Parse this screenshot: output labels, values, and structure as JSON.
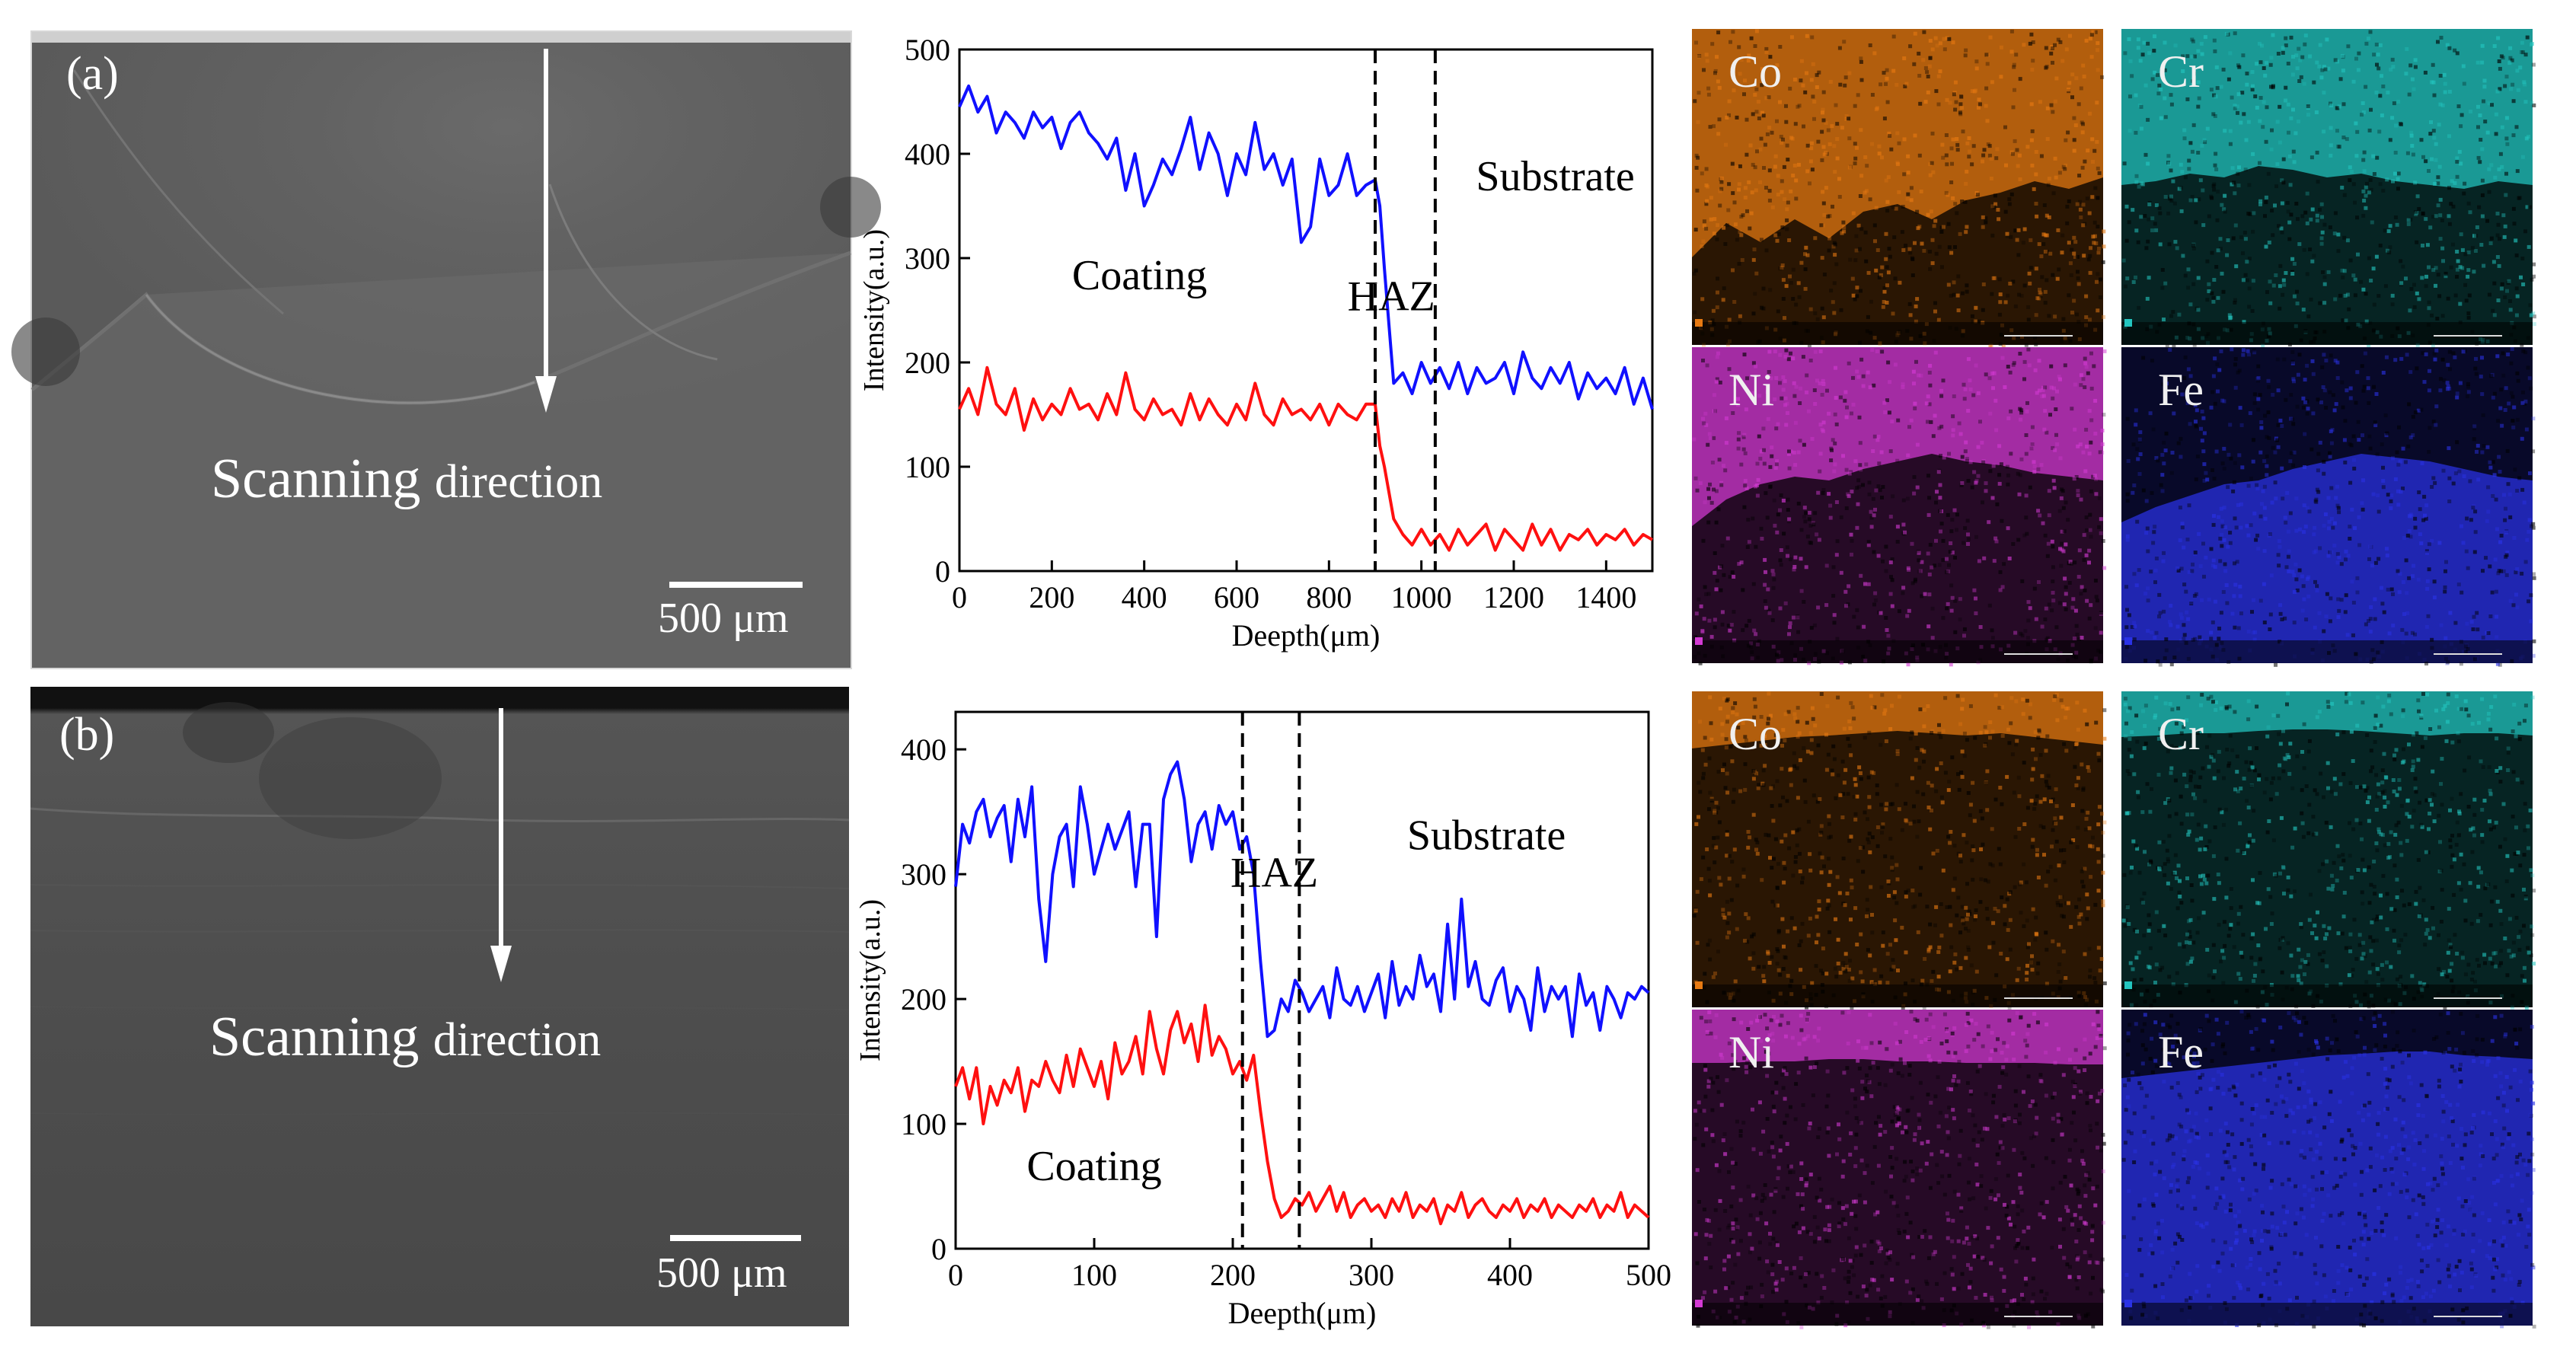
{
  "panels": [
    {
      "label": "(a)",
      "scan_text_main": "Scanning",
      "scan_text_small": "direction",
      "scalebar": "500 μm"
    },
    {
      "label": "(b)",
      "scan_text_main": "Scanning",
      "scan_text_small": "direction",
      "scalebar": "500 μm"
    }
  ],
  "eds_maps": [
    {
      "element": "Co",
      "color": "#e87a12"
    },
    {
      "element": "Cr",
      "color": "#23c6c0"
    },
    {
      "element": "Ni",
      "color": "#d43ad4"
    },
    {
      "element": "Fe",
      "color": "#2a32e6"
    }
  ],
  "chart_data": [
    {
      "type": "line",
      "xlabel": "Deepth(μm)",
      "ylabel": "Intensity(a.u.)",
      "xlim": [
        0,
        1500
      ],
      "ylim": [
        0,
        500
      ],
      "xticks": [
        0,
        200,
        400,
        600,
        800,
        1000,
        1200,
        1400
      ],
      "yticks": [
        0,
        100,
        200,
        300,
        400,
        500
      ],
      "boundaries": [
        900,
        1030
      ],
      "annotations": [
        {
          "text": "Coating",
          "x": 390,
          "y": 270
        },
        {
          "text": "HAZ",
          "x": 935,
          "y": 250
        },
        {
          "text": "Substrate",
          "x": 1290,
          "y": 365
        }
      ],
      "series": [
        {
          "name": "blue",
          "color": "#1010ff",
          "x": [
            0,
            20,
            40,
            60,
            80,
            100,
            120,
            140,
            160,
            180,
            200,
            220,
            240,
            260,
            280,
            300,
            320,
            340,
            360,
            380,
            400,
            420,
            440,
            460,
            480,
            500,
            520,
            540,
            560,
            580,
            600,
            620,
            640,
            660,
            680,
            700,
            720,
            740,
            760,
            780,
            800,
            820,
            840,
            860,
            880,
            900,
            910,
            920,
            940,
            960,
            980,
            1000,
            1020,
            1040,
            1060,
            1080,
            1100,
            1120,
            1140,
            1160,
            1180,
            1200,
            1220,
            1240,
            1260,
            1280,
            1300,
            1320,
            1340,
            1360,
            1380,
            1400,
            1420,
            1440,
            1460,
            1480,
            1500
          ],
          "y": [
            445,
            465,
            440,
            455,
            420,
            440,
            430,
            415,
            440,
            425,
            435,
            405,
            430,
            440,
            420,
            410,
            395,
            415,
            365,
            400,
            350,
            370,
            395,
            380,
            405,
            435,
            385,
            420,
            400,
            360,
            400,
            380,
            430,
            385,
            400,
            370,
            395,
            315,
            330,
            395,
            360,
            370,
            400,
            360,
            370,
            375,
            350,
            290,
            180,
            190,
            170,
            200,
            180,
            195,
            175,
            200,
            170,
            195,
            180,
            185,
            200,
            170,
            210,
            185,
            175,
            195,
            180,
            200,
            165,
            190,
            175,
            185,
            170,
            195,
            160,
            185,
            155
          ]
        },
        {
          "name": "red",
          "color": "#ff1010",
          "x": [
            0,
            20,
            40,
            60,
            80,
            100,
            120,
            140,
            160,
            180,
            200,
            220,
            240,
            260,
            280,
            300,
            320,
            340,
            360,
            380,
            400,
            420,
            440,
            460,
            480,
            500,
            520,
            540,
            560,
            580,
            600,
            620,
            640,
            660,
            680,
            700,
            720,
            740,
            760,
            780,
            800,
            820,
            840,
            860,
            880,
            900,
            910,
            920,
            940,
            960,
            980,
            1000,
            1020,
            1040,
            1060,
            1080,
            1100,
            1120,
            1140,
            1160,
            1180,
            1200,
            1220,
            1240,
            1260,
            1280,
            1300,
            1320,
            1340,
            1360,
            1380,
            1400,
            1420,
            1440,
            1460,
            1480,
            1500
          ],
          "y": [
            155,
            175,
            150,
            195,
            160,
            150,
            175,
            135,
            165,
            145,
            160,
            150,
            175,
            155,
            160,
            145,
            170,
            150,
            190,
            155,
            145,
            165,
            150,
            155,
            140,
            170,
            145,
            165,
            150,
            140,
            160,
            145,
            180,
            150,
            140,
            165,
            150,
            155,
            145,
            160,
            140,
            160,
            150,
            145,
            160,
            160,
            120,
            100,
            50,
            35,
            25,
            40,
            25,
            35,
            20,
            40,
            25,
            35,
            45,
            20,
            40,
            30,
            20,
            45,
            25,
            40,
            20,
            35,
            30,
            40,
            25,
            35,
            30,
            40,
            25,
            35,
            30
          ]
        }
      ]
    },
    {
      "type": "line",
      "xlabel": "Deepth(μm)",
      "ylabel": "Intensity(a.u.)",
      "xlim": [
        0,
        500
      ],
      "ylim": [
        0,
        430
      ],
      "xticks": [
        0,
        100,
        200,
        300,
        400,
        500
      ],
      "yticks": [
        0,
        100,
        200,
        300,
        400
      ],
      "boundaries": [
        207,
        248
      ],
      "annotations": [
        {
          "text": "Coating",
          "x": 100,
          "y": 55
        },
        {
          "text": "HAZ",
          "x": 230,
          "y": 290
        },
        {
          "text": "Substrate",
          "x": 383,
          "y": 320
        }
      ],
      "series": [
        {
          "name": "blue",
          "color": "#1010ff",
          "x": [
            0,
            5,
            10,
            15,
            20,
            25,
            30,
            35,
            40,
            45,
            50,
            55,
            60,
            65,
            70,
            75,
            80,
            85,
            90,
            95,
            100,
            105,
            110,
            115,
            120,
            125,
            130,
            135,
            140,
            145,
            150,
            155,
            160,
            165,
            170,
            175,
            180,
            185,
            190,
            195,
            200,
            205,
            210,
            215,
            220,
            225,
            230,
            235,
            240,
            245,
            250,
            255,
            260,
            265,
            270,
            275,
            280,
            285,
            290,
            295,
            300,
            305,
            310,
            315,
            320,
            325,
            330,
            335,
            340,
            345,
            350,
            355,
            360,
            365,
            370,
            375,
            380,
            385,
            390,
            395,
            400,
            405,
            410,
            415,
            420,
            425,
            430,
            435,
            440,
            445,
            450,
            455,
            460,
            465,
            470,
            475,
            480,
            485,
            490,
            495,
            500
          ],
          "y": [
            290,
            340,
            325,
            350,
            360,
            330,
            345,
            355,
            310,
            360,
            330,
            370,
            280,
            230,
            300,
            330,
            340,
            290,
            370,
            340,
            300,
            320,
            340,
            320,
            335,
            350,
            290,
            340,
            340,
            250,
            360,
            380,
            390,
            360,
            310,
            340,
            350,
            320,
            355,
            340,
            350,
            320,
            330,
            300,
            230,
            170,
            175,
            200,
            190,
            215,
            205,
            190,
            200,
            210,
            185,
            225,
            200,
            195,
            210,
            190,
            205,
            220,
            185,
            230,
            195,
            210,
            200,
            235,
            210,
            220,
            190,
            260,
            200,
            280,
            210,
            230,
            200,
            195,
            215,
            225,
            190,
            210,
            200,
            175,
            225,
            190,
            210,
            200,
            210,
            170,
            220,
            195,
            205,
            175,
            210,
            200,
            185,
            205,
            200,
            210,
            205
          ]
        },
        {
          "name": "red",
          "color": "#ff1010",
          "x": [
            0,
            5,
            10,
            15,
            20,
            25,
            30,
            35,
            40,
            45,
            50,
            55,
            60,
            65,
            70,
            75,
            80,
            85,
            90,
            95,
            100,
            105,
            110,
            115,
            120,
            125,
            130,
            135,
            140,
            145,
            150,
            155,
            160,
            165,
            170,
            175,
            180,
            185,
            190,
            195,
            200,
            205,
            210,
            215,
            220,
            225,
            230,
            235,
            240,
            245,
            250,
            255,
            260,
            265,
            270,
            275,
            280,
            285,
            290,
            295,
            300,
            305,
            310,
            315,
            320,
            325,
            330,
            335,
            340,
            345,
            350,
            355,
            360,
            365,
            370,
            375,
            380,
            385,
            390,
            395,
            400,
            405,
            410,
            415,
            420,
            425,
            430,
            435,
            440,
            445,
            450,
            455,
            460,
            465,
            470,
            475,
            480,
            485,
            490,
            495,
            500
          ],
          "y": [
            130,
            145,
            120,
            145,
            100,
            130,
            115,
            135,
            125,
            145,
            110,
            135,
            130,
            150,
            135,
            125,
            155,
            130,
            160,
            145,
            130,
            150,
            120,
            165,
            140,
            150,
            170,
            140,
            190,
            160,
            140,
            175,
            190,
            165,
            180,
            150,
            195,
            155,
            170,
            160,
            140,
            150,
            135,
            155,
            110,
            70,
            40,
            25,
            30,
            40,
            35,
            45,
            30,
            40,
            50,
            30,
            45,
            25,
            35,
            40,
            30,
            35,
            25,
            40,
            30,
            45,
            25,
            35,
            30,
            40,
            20,
            35,
            30,
            45,
            25,
            35,
            40,
            30,
            25,
            35,
            30,
            40,
            25,
            35,
            30,
            40,
            25,
            35,
            30,
            25,
            35,
            30,
            40,
            25,
            35,
            30,
            45,
            25,
            35,
            30,
            25
          ]
        }
      ]
    }
  ]
}
